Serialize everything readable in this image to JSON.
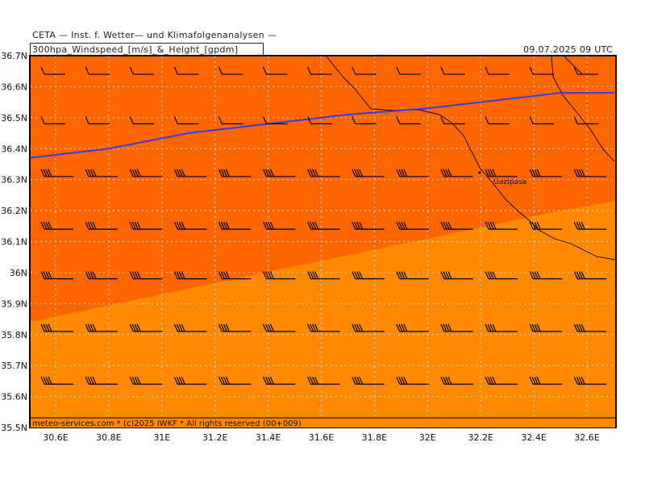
{
  "header": {
    "title": "CETA — Inst. f. Wetter— und Klimafolgenanalysen —",
    "subtitle": "300hpa_Windspeed_[m/s]_&_Height_[gpdm]",
    "datetime": "09.07.2025 09 UTC"
  },
  "footer": {
    "copyright": "meteo-services.com * (c)2025 IWKF * All rights reserved (00+009)"
  },
  "map": {
    "lon_range": [
      30.5,
      32.7
    ],
    "lat_range": [
      35.5,
      36.7
    ],
    "x_ticks": [
      "30.6E",
      "30.8E",
      "31E",
      "31.2E",
      "31.4E",
      "31.6E",
      "31.8E",
      "32E",
      "32.2E",
      "32.4E",
      "32.6E"
    ],
    "y_ticks": [
      "36.7N",
      "36.6N",
      "36.5N",
      "36.4N",
      "36.3N",
      "36.2N",
      "36.1N",
      "36N",
      "35.9N",
      "35.8N",
      "35.7N",
      "35.6N",
      "35.5N"
    ],
    "place_label": "Gazipasa",
    "colors": {
      "zone_strong": "#ff6600",
      "zone_moderate": "#ff8a00",
      "height_contour": "#3a3adc",
      "grid": "#c9c9c9",
      "coastline": "#000000",
      "barb": "#000000"
    },
    "contour_line": [
      [
        30.5,
        36.37
      ],
      [
        30.8,
        36.4
      ],
      [
        31.1,
        36.45
      ],
      [
        31.4,
        36.48
      ],
      [
        31.7,
        36.51
      ],
      [
        32.0,
        36.53
      ],
      [
        32.3,
        36.56
      ],
      [
        32.5,
        36.58
      ],
      [
        32.6,
        36.58
      ],
      [
        32.7,
        36.58
      ]
    ],
    "zone_boundary": [
      [
        30.5,
        35.84
      ],
      [
        31.0,
        35.93
      ],
      [
        31.5,
        36.02
      ],
      [
        32.0,
        36.11
      ],
      [
        32.5,
        36.2
      ],
      [
        32.7,
        36.23
      ]
    ],
    "wind_barb_rows": [
      {
        "lat": 36.64,
        "barbs": 1,
        "wind_speed_ms": 10
      },
      {
        "lat": 36.48,
        "barbs": 1,
        "wind_speed_ms": 10
      },
      {
        "lat": 36.31,
        "barbs": 4,
        "wind_speed_ms": 20
      },
      {
        "lat": 36.14,
        "barbs": 4,
        "wind_speed_ms": 20
      },
      {
        "lat": 35.98,
        "barbs": 4,
        "wind_speed_ms": 20
      },
      {
        "lat": 35.81,
        "barbs": 4,
        "wind_speed_ms": 20
      },
      {
        "lat": 35.64,
        "barbs": 4,
        "wind_speed_ms": 20
      }
    ]
  }
}
